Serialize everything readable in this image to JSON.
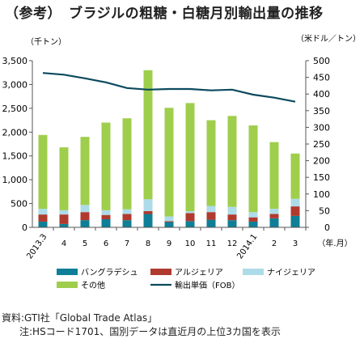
{
  "title": "（参考）　ブラジルの粗糖・白糖月別輸出量の推移",
  "chart_data": {
    "type": "bar",
    "stacked": true,
    "categories": [
      "2013.3",
      "4",
      "5",
      "6",
      "7",
      "8",
      "9",
      "10",
      "11",
      "12",
      "2014.1",
      "2",
      "3"
    ],
    "xlabel": "（年.月）",
    "ylabel_left": "（千トン）",
    "ylabel_right": "（米ドル／トン）",
    "ylim_left": [
      0,
      3500
    ],
    "ylim_right": [
      0,
      500
    ],
    "yticks_left": [
      "0",
      "500",
      "1,000",
      "1,500",
      "2,000",
      "2,500",
      "3,000",
      "3,500"
    ],
    "yticks_right": [
      "0",
      "50",
      "100",
      "150",
      "200",
      "250",
      "300",
      "350",
      "400",
      "450",
      "500"
    ],
    "grid": false,
    "legend_position": "bottom",
    "series": [
      {
        "name": "バングラデシュ",
        "color": "#0e7f96",
        "values": [
          120,
          70,
          150,
          170,
          150,
          280,
          110,
          130,
          160,
          150,
          120,
          190,
          240
        ]
      },
      {
        "name": "アルジェリア",
        "color": "#b03a2e",
        "values": [
          150,
          200,
          170,
          90,
          130,
          60,
          20,
          170,
          160,
          120,
          90,
          90,
          200
        ]
      },
      {
        "name": "ナイジェリア",
        "color": "#aedbe8",
        "values": [
          120,
          90,
          150,
          100,
          100,
          250,
          100,
          40,
          130,
          160,
          110,
          110,
          160
        ]
      },
      {
        "name": "その他",
        "color": "#9fce4c",
        "values": [
          1550,
          1320,
          1430,
          1840,
          1910,
          2710,
          2280,
          2270,
          1800,
          1910,
          1820,
          1400,
          950
        ]
      }
    ],
    "line_series": {
      "name": "輸出単価（FOB）",
      "color": "#0b4a5e",
      "axis": "right",
      "values": [
        463,
        458,
        447,
        435,
        418,
        413,
        415,
        415,
        411,
        413,
        398,
        389,
        377
      ]
    }
  },
  "source_line1": "資料:GTI社「Global Trade Atlas」",
  "source_line2": "注:HSコード1701、国別データは直近月の上位3カ国を表示"
}
